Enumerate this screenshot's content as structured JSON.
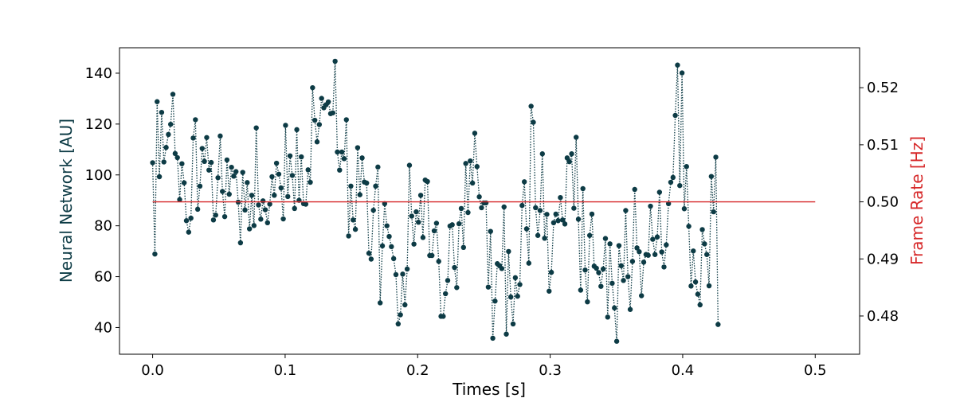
{
  "chart_data": {
    "type": "line",
    "xlabel": "Times [s]",
    "ylabel_left": "Neural Network [AU]",
    "ylabel_right": "Frame Rate [Hz]",
    "xlim": [
      -0.025,
      0.5335
    ],
    "ylim_left": [
      29.5,
      150
    ],
    "ylim_right": [
      0.4733,
      0.527
    ],
    "xticks": [
      0.0,
      0.1,
      0.2,
      0.3,
      0.4,
      0.5
    ],
    "xtick_labels": [
      "0.0",
      "0.1",
      "0.2",
      "0.3",
      "0.4",
      "0.5"
    ],
    "yticks_left": [
      40,
      60,
      80,
      100,
      120,
      140
    ],
    "ytick_labels_left": [
      "40",
      "60",
      "80",
      "100",
      "120",
      "140"
    ],
    "yticks_right": [
      0.48,
      0.49,
      0.5,
      0.51,
      0.52
    ],
    "ytick_labels_right": [
      "0.48",
      "0.49",
      "0.50",
      "0.51",
      "0.52"
    ],
    "grid": false,
    "colors": {
      "neural": "#0d3b45",
      "frame": "#d62728",
      "axis": "#000000"
    },
    "series": [
      {
        "axis": "left",
        "style": "dotted-with-markers",
        "dx": 0.0017,
        "values": [
          104.8,
          68.9,
          128.8,
          99.3,
          124.6,
          105.1,
          110.8,
          115.9,
          119.9,
          131.7,
          108.4,
          106.8,
          90.3,
          104.4,
          96.9,
          82.0,
          77.5,
          83.0,
          114.5,
          121.7,
          86.5,
          95.6,
          110.4,
          105.3,
          114.7,
          101.9,
          104.9,
          82.3,
          84.2,
          98.9,
          115.3,
          93.5,
          83.6,
          105.9,
          92.4,
          103.0,
          99.5,
          101.3,
          89.3,
          73.3,
          101.0,
          86.2,
          97.0,
          78.8,
          92.0,
          80.1,
          118.5,
          88.2,
          82.6,
          89.8,
          86.3,
          81.2,
          88.5,
          99.3,
          92.0,
          104.6,
          100.3,
          94.9,
          82.7,
          119.5,
          91.5,
          107.5,
          99.8,
          86.8,
          117.8,
          90.0,
          107.1,
          88.7,
          88.5,
          102.0,
          97.1,
          134.3,
          121.5,
          113.0,
          119.8,
          130.1,
          126.4,
          127.6,
          128.7,
          124.1,
          124.4,
          144.7,
          109.0,
          101.9,
          109.0,
          106.4,
          121.7,
          76.0,
          95.6,
          82.3,
          78.6,
          110.7,
          92.2,
          106.7,
          97.2,
          96.8,
          69.2,
          66.9,
          86.1,
          95.6,
          103.1,
          49.7,
          72.1,
          88.7,
          80.0,
          75.8,
          71.8,
          67.1,
          60.8,
          41.4,
          45.0,
          61.0,
          48.9,
          63.0,
          103.8,
          83.8,
          72.8,
          85.5,
          81.4,
          92.0,
          75.4,
          98.0,
          97.4,
          68.3,
          68.3,
          78.0,
          81.0,
          66.0,
          44.4,
          44.4,
          53.3,
          58.5,
          79.9,
          80.4,
          63.6,
          55.7,
          80.8,
          86.8,
          71.5,
          104.5,
          85.2,
          105.5,
          96.8,
          116.4,
          103.3,
          91.4,
          87.1,
          89.0,
          89.0,
          55.9,
          77.8,
          35.8,
          50.4,
          65.1,
          64.3,
          63.2,
          87.4,
          37.4,
          69.9,
          52.0,
          41.4,
          59.6,
          52.3,
          56.9,
          88.0,
          97.3,
          78.8,
          65.3,
          127.0,
          120.7,
          87.1,
          76.2,
          86.0,
          108.3,
          75.1,
          84.5,
          54.3,
          61.7,
          81.2,
          84.6,
          82.0,
          91.1,
          82.3,
          80.7,
          106.7,
          105.2,
          108.3,
          86.9,
          114.8,
          82.6,
          54.7,
          94.6,
          62.6,
          50.1,
          76.2,
          84.6,
          64.1,
          63.3,
          61.6,
          56.2,
          63.0,
          75.0,
          44.1,
          72.9,
          57.4,
          47.7,
          34.6,
          72.2,
          64.3,
          58.5,
          86.0,
          60.0,
          47.1,
          66.0,
          94.3,
          71.3,
          69.8,
          52.5,
          65.7,
          68.7,
          68.4,
          87.7,
          74.7,
          68.7,
          75.6,
          93.2,
          69.7,
          63.8,
          72.5,
          88.7,
          97.1,
          99.0,
          123.4,
          143.2,
          95.8,
          140.1,
          86.7,
          103.3,
          79.8,
          56.3,
          70.1,
          57.9,
          53.1,
          48.9,
          78.5,
          72.9,
          68.7,
          56.4,
          99.4,
          85.5,
          107.0,
          41.2
        ]
      },
      {
        "axis": "right",
        "style": "solid",
        "x": [
          0.0,
          0.5
        ],
        "values": [
          0.5,
          0.5
        ]
      }
    ]
  }
}
